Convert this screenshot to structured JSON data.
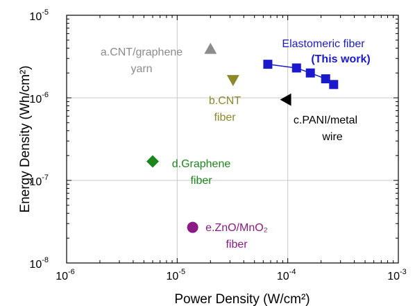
{
  "chart_data": {
    "type": "scatter",
    "xlabel": "Power Density (W/cm²)",
    "ylabel": "Energy Density (Wh/cm²)",
    "x_scale": "log",
    "y_scale": "log",
    "xlim": [
      1e-06,
      0.001
    ],
    "ylim": [
      1e-08,
      1e-05
    ],
    "grid": true,
    "x_ticks": [
      {
        "base": "10",
        "exp": "-6"
      },
      {
        "base": "10",
        "exp": "-5"
      },
      {
        "base": "10",
        "exp": "-4"
      },
      {
        "base": "10",
        "exp": "-3"
      }
    ],
    "y_ticks": [
      {
        "base": "10",
        "exp": "-8"
      },
      {
        "base": "10",
        "exp": "-7"
      },
      {
        "base": "10",
        "exp": "-6"
      },
      {
        "base": "10",
        "exp": "-5"
      }
    ],
    "series": [
      {
        "label_lines": [
          "Elastomeric fiber",
          "(This work)"
        ],
        "color": "#1a1acc",
        "marker": "square",
        "connected": true,
        "points": [
          {
            "x": 6.6e-05,
            "y": 2.55e-06
          },
          {
            "x": 0.00012,
            "y": 2.3e-06
          },
          {
            "x": 0.00016,
            "y": 2e-06
          },
          {
            "x": 0.00022,
            "y": 1.7e-06
          },
          {
            "x": 0.00026,
            "y": 1.45e-06
          }
        ]
      },
      {
        "label_lines": [
          "a.CNT/graphene",
          "yarn"
        ],
        "color": "#8c8c8c",
        "marker": "triangle-up",
        "points": [
          {
            "x": 2e-05,
            "y": 3.9e-06
          }
        ]
      },
      {
        "label_lines": [
          "b.CNT",
          "fiber"
        ],
        "color": "#8a8a2a",
        "marker": "triangle-down",
        "points": [
          {
            "x": 3.2e-05,
            "y": 1.65e-06
          }
        ]
      },
      {
        "label_lines": [
          "c.PANI/metal",
          "wire"
        ],
        "color": "#000000",
        "marker": "triangle-left",
        "points": [
          {
            "x": 9.7e-05,
            "y": 9.5e-07
          }
        ]
      },
      {
        "label_lines": [
          "d.Graphene",
          "fiber"
        ],
        "color": "#1c861c",
        "marker": "diamond",
        "points": [
          {
            "x": 6e-06,
            "y": 1.7e-07
          }
        ]
      },
      {
        "label_lines": [
          "e.ZnO/MnO₂",
          "fiber"
        ],
        "color": "#8a1a86",
        "marker": "circle",
        "points": [
          {
            "x": 1.38e-05,
            "y": 2.7e-08
          }
        ]
      }
    ]
  }
}
